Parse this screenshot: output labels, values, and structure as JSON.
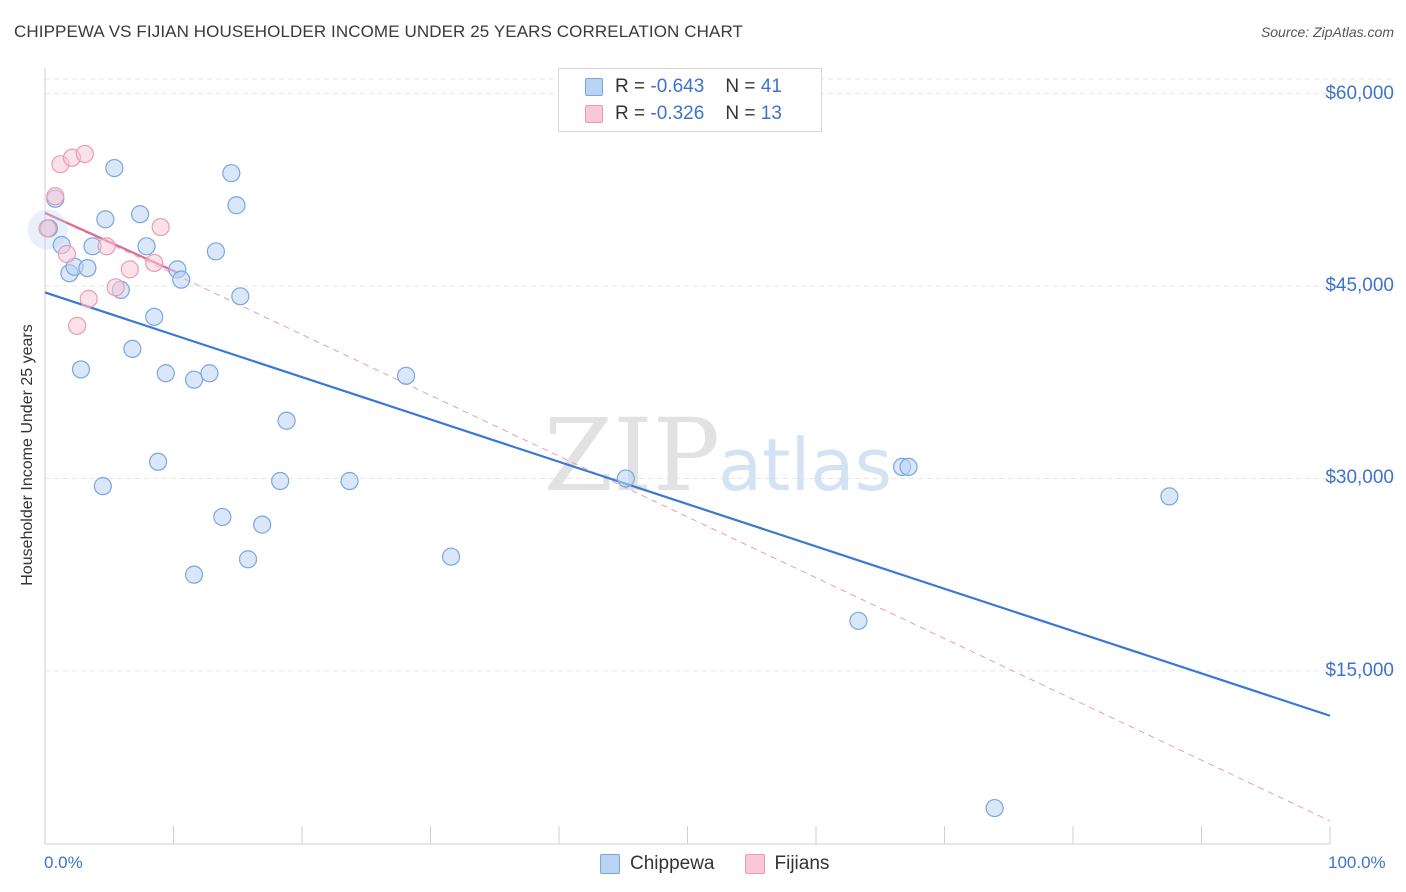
{
  "chart_data": {
    "type": "scatter",
    "title": "CHIPPEWA VS FIJIAN HOUSEHOLDER INCOME UNDER 25 YEARS CORRELATION CHART",
    "source": "Source: ZipAtlas.com",
    "xlabel": "",
    "ylabel": "Householder Income Under 25 years",
    "x_tick_labels": [
      "0.0%",
      "100.0%"
    ],
    "y_tick_labels": [
      "$60,000",
      "$45,000",
      "$30,000",
      "$15,000"
    ],
    "y_ticks": [
      60000,
      45000,
      30000,
      15000
    ],
    "xlim": [
      0,
      100
    ],
    "ylim": [
      1500,
      62000
    ],
    "grid": true,
    "watermark": "ZIPatlas",
    "legend": {
      "chippewa": {
        "r_label": "R =",
        "r_value": "-0.643",
        "n_label": "N =",
        "n_value": "41"
      },
      "fijians": {
        "r_label": "R =",
        "r_value": "-0.326",
        "n_label": "N =",
        "n_value": "13"
      }
    },
    "series": [
      {
        "name": "Chippewa",
        "color": "#7aa6e0",
        "fill": "#b9d3f3",
        "trend": {
          "x": [
            0,
            100
          ],
          "y": [
            44500,
            11500
          ]
        },
        "points": [
          {
            "x": 0.3,
            "y": 49500
          },
          {
            "x": 0.8,
            "y": 51800
          },
          {
            "x": 1.3,
            "y": 48200
          },
          {
            "x": 1.9,
            "y": 46000
          },
          {
            "x": 2.3,
            "y": 46500
          },
          {
            "x": 2.8,
            "y": 38500
          },
          {
            "x": 3.3,
            "y": 46400
          },
          {
            "x": 3.7,
            "y": 48100
          },
          {
            "x": 4.5,
            "y": 29400
          },
          {
            "x": 4.7,
            "y": 50200
          },
          {
            "x": 5.4,
            "y": 54200
          },
          {
            "x": 5.9,
            "y": 44700
          },
          {
            "x": 6.8,
            "y": 40100
          },
          {
            "x": 7.4,
            "y": 50600
          },
          {
            "x": 7.9,
            "y": 48100
          },
          {
            "x": 8.5,
            "y": 42600
          },
          {
            "x": 8.8,
            "y": 31300
          },
          {
            "x": 9.4,
            "y": 38200
          },
          {
            "x": 10.3,
            "y": 46300
          },
          {
            "x": 10.6,
            "y": 45500
          },
          {
            "x": 11.6,
            "y": 22500
          },
          {
            "x": 11.6,
            "y": 37700
          },
          {
            "x": 12.8,
            "y": 38200
          },
          {
            "x": 13.3,
            "y": 47700
          },
          {
            "x": 13.8,
            "y": 27000
          },
          {
            "x": 14.5,
            "y": 53800
          },
          {
            "x": 14.9,
            "y": 51300
          },
          {
            "x": 15.2,
            "y": 44200
          },
          {
            "x": 15.8,
            "y": 23700
          },
          {
            "x": 16.9,
            "y": 26400
          },
          {
            "x": 18.3,
            "y": 29800
          },
          {
            "x": 18.8,
            "y": 34500
          },
          {
            "x": 23.7,
            "y": 29800
          },
          {
            "x": 28.1,
            "y": 38000
          },
          {
            "x": 31.6,
            "y": 23900
          },
          {
            "x": 45.2,
            "y": 30000
          },
          {
            "x": 63.3,
            "y": 18900
          },
          {
            "x": 66.7,
            "y": 30900
          },
          {
            "x": 67.2,
            "y": 30900
          },
          {
            "x": 73.9,
            "y": 4300
          },
          {
            "x": 87.5,
            "y": 28600
          }
        ]
      },
      {
        "name": "Fijians",
        "color": "#ea9bb3",
        "fill": "#f8c8d6",
        "trend": {
          "x": [
            0,
            10.4
          ],
          "y": [
            50700,
            46000
          ]
        },
        "trend_extended": {
          "x": [
            0,
            100
          ],
          "y": [
            50700,
            3300
          ]
        },
        "points": [
          {
            "x": 0.2,
            "y": 49500
          },
          {
            "x": 0.8,
            "y": 52000
          },
          {
            "x": 1.2,
            "y": 54500
          },
          {
            "x": 1.7,
            "y": 47500
          },
          {
            "x": 2.1,
            "y": 55000
          },
          {
            "x": 2.5,
            "y": 41900
          },
          {
            "x": 3.1,
            "y": 55300
          },
          {
            "x": 3.4,
            "y": 44000
          },
          {
            "x": 4.8,
            "y": 48100
          },
          {
            "x": 5.5,
            "y": 44900
          },
          {
            "x": 6.6,
            "y": 46300
          },
          {
            "x": 8.5,
            "y": 46800
          },
          {
            "x": 9.0,
            "y": 49600
          }
        ]
      }
    ]
  }
}
